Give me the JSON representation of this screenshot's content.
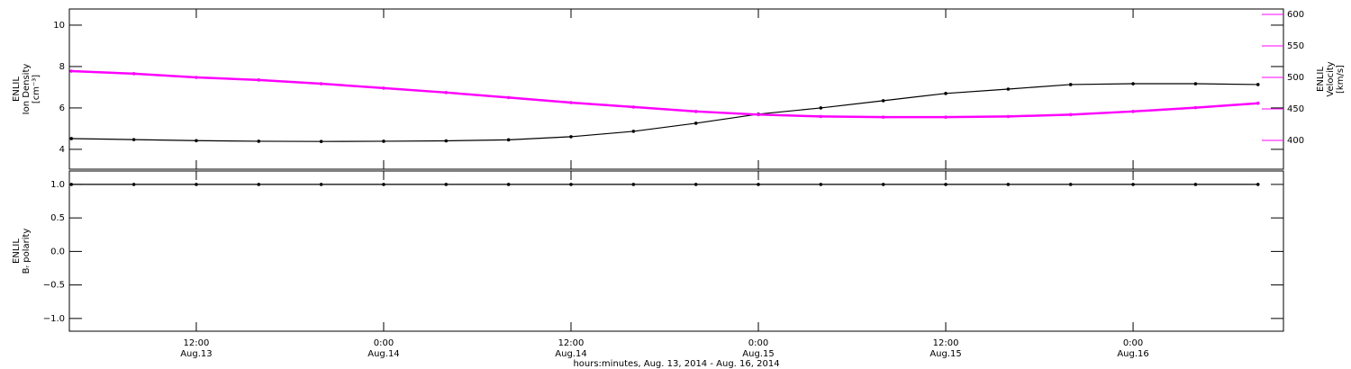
{
  "chart_data": [
    {
      "type": "line",
      "ylabel": [
        "ENLIL",
        "Ion Density",
        "[cm⁻³]"
      ],
      "y2label": [
        "ENLIL",
        "Velocity",
        "[km/s]"
      ],
      "xlim": [
        3.87,
        81.63
      ],
      "ylim": [
        3.04,
        10.78
      ],
      "yticks": [
        4,
        6,
        8,
        10
      ],
      "y2lim": [
        354.3,
        608.6
      ],
      "y2ticks": [
        400,
        450,
        500,
        550,
        600
      ],
      "y2color": "#ff00ff",
      "x": [
        4,
        8,
        12,
        16,
        20,
        24,
        28,
        32,
        36,
        40,
        44,
        48,
        52,
        56,
        60,
        64,
        68,
        72,
        76,
        80
      ],
      "series": [
        {
          "color": "#000000",
          "values": [
            4.52,
            4.47,
            4.42,
            4.39,
            4.38,
            4.39,
            4.41,
            4.46,
            4.61,
            4.87,
            5.26,
            5.7,
            6.0,
            6.35,
            6.7,
            6.91,
            7.13,
            7.17,
            7.17,
            7.13
          ]
        },
        {
          "color": "#ff00ff",
          "axis": "y2",
          "values": [
            510,
            506,
            500,
            496,
            490,
            483,
            476,
            468,
            460,
            453,
            446,
            441,
            438,
            437,
            437,
            438,
            441,
            446,
            452,
            459
          ]
        }
      ]
    },
    {
      "type": "line",
      "ylabel": [
        "ENLIL",
        "Bᵣ polarity"
      ],
      "xlabel": "hours:minutes, Aug. 13, 2014 - Aug. 16, 2014",
      "xlim": [
        3.87,
        81.63
      ],
      "xticks": [
        {
          "value": 12,
          "label": "12:00"
        },
        {
          "value": 24,
          "label": "0:00"
        },
        {
          "value": 36,
          "label": "12:00"
        },
        {
          "value": 48,
          "label": "0:00"
        },
        {
          "value": 60,
          "label": "12:00"
        },
        {
          "value": 72,
          "label": "0:00"
        }
      ],
      "xtick_dates": [
        "Aug.13",
        "Aug.14",
        "Aug.14",
        "Aug.15",
        "Aug.15",
        "Aug.16"
      ],
      "ylim": [
        -1.19,
        1.2
      ],
      "yticks": [
        {
          "value": -1,
          "label": "−1.0"
        },
        {
          "value": -0.5,
          "label": "−0.5"
        },
        {
          "value": 0,
          "label": "0.0"
        },
        {
          "value": 0.5,
          "label": "0.5"
        },
        {
          "value": 1,
          "label": "1.0"
        }
      ],
      "x": [
        4,
        8,
        12,
        16,
        20,
        24,
        28,
        32,
        36,
        40,
        44,
        48,
        52,
        56,
        60,
        64,
        68,
        72,
        76,
        80
      ],
      "series": [
        {
          "color": "#000000",
          "values": [
            1,
            1,
            1,
            1,
            1,
            1,
            1,
            1,
            1,
            1,
            1,
            1,
            1,
            1,
            1,
            1,
            1,
            1,
            1,
            1
          ]
        }
      ]
    }
  ]
}
